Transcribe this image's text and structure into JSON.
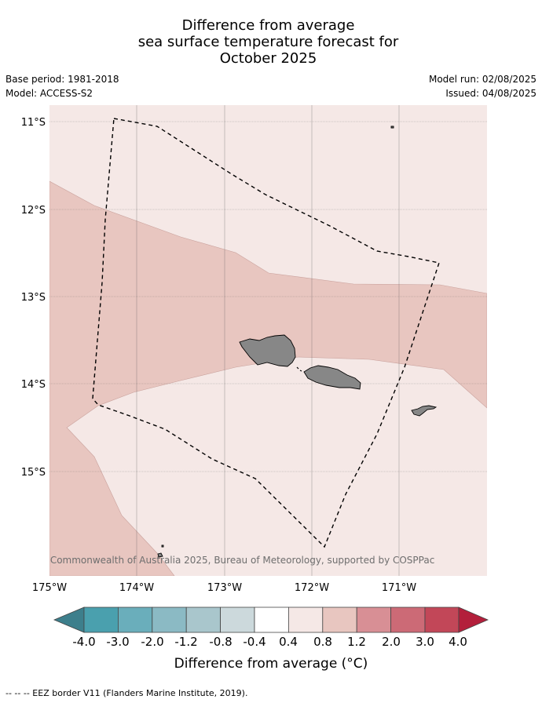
{
  "title": {
    "line1": "Difference from average",
    "line2": "sea surface temperature forecast for",
    "line3": "October 2025"
  },
  "meta": {
    "base_period": "Base period: 1981-2018",
    "model": "Model: ACCESS-S2",
    "model_run": "Model run: 02/08/2025",
    "issued": "Issued: 04/08/2025"
  },
  "map": {
    "lat_labels": [
      "11°S",
      "12°S",
      "13°S",
      "14°S",
      "15°S"
    ],
    "lon_labels": [
      "175°W",
      "174°W",
      "173°W",
      "172°W",
      "171°W"
    ],
    "copyright": "© Commonwealth of Australia 2025, Bureau of Meteorology, supported by COSPPac",
    "colors": {
      "band_0_4_0_8": "#f5e8e6",
      "band_0_8_1_2": "#e8c6c0",
      "land": "#878787"
    }
  },
  "colorbar": {
    "title": "Difference from average (°C)",
    "ticks": [
      "-4.0",
      "-3.0",
      "-2.0",
      "-1.2",
      "-0.8",
      "-0.4",
      "0.4",
      "0.8",
      "1.2",
      "2.0",
      "3.0",
      "4.0"
    ],
    "colors": [
      "#3d7f8c",
      "#4aa0ae",
      "#6aaebb",
      "#8bbac4",
      "#a9c6cc",
      "#ccd9dc",
      "#ffffff",
      "#f5e8e6",
      "#e8c6c0",
      "#d88f95",
      "#cc6a76",
      "#c24758",
      "#b31f3b"
    ]
  },
  "footnote": "-- -- -- EEZ border V11 (Flanders Marine Institute, 2019)."
}
